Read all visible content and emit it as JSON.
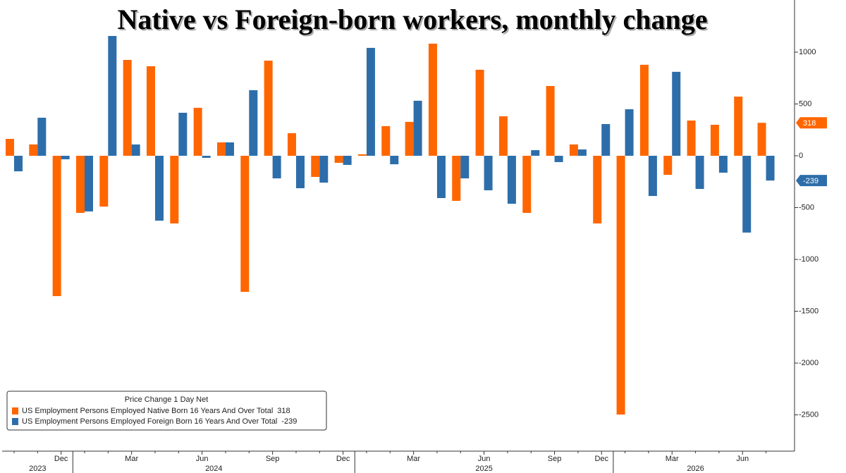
{
  "chart_data": {
    "type": "bar",
    "title": "Native vs Foreign-born workers, monthly change",
    "legend_title": "Price Change 1 Day Net",
    "categories": [
      null,
      null,
      "Dec",
      null,
      null,
      "Mar",
      null,
      null,
      "Jun",
      null,
      null,
      "Sep",
      null,
      null,
      "Dec",
      null,
      null,
      "Mar",
      null,
      null,
      "Jun",
      null,
      null,
      "Sep",
      null,
      "Dec",
      null,
      null,
      "Mar",
      null,
      null,
      "Jun",
      null
    ],
    "x_group_labels": [
      "2023",
      null,
      null,
      "2024",
      null,
      null,
      null,
      null,
      null,
      null,
      null,
      null,
      null,
      null,
      null,
      "2025",
      null,
      null,
      null,
      null,
      null,
      null,
      null,
      null,
      null,
      null,
      "2026",
      null,
      null,
      null,
      null,
      null,
      null
    ],
    "series": [
      {
        "name": "US Employment Persons Employed Native Born 16 Years And Over Total",
        "color": "#ff6600",
        "values": [
          163,
          109,
          -1354,
          -551,
          -490,
          925,
          864,
          -653,
          463,
          129,
          -1313,
          918,
          218,
          -204,
          -68,
          14,
          286,
          327,
          1082,
          -435,
          830,
          381,
          -551,
          673,
          109,
          -653,
          -2497,
          878,
          -184,
          340,
          299,
          571,
          318
        ]
      },
      {
        "name": "US Employment Persons Employed Foreign Born 16 Years And Over Total",
        "color": "#2d6eaa",
        "values": [
          -150,
          367,
          -34,
          -537,
          1156,
          109,
          -626,
          415,
          -20,
          129,
          633,
          -218,
          -313,
          -259,
          -88,
          1041,
          -82,
          531,
          -408,
          -218,
          -333,
          -463,
          54,
          -61,
          61,
          306,
          449,
          -388,
          810,
          -320,
          -163,
          -741,
          -239
        ]
      }
    ],
    "ylim": [
      -2850,
      1503
    ],
    "yticks": [
      1000,
      500,
      0,
      -500,
      -1000,
      -1500,
      -2000,
      -2500
    ],
    "grid": false,
    "legend_position": "lower left"
  }
}
